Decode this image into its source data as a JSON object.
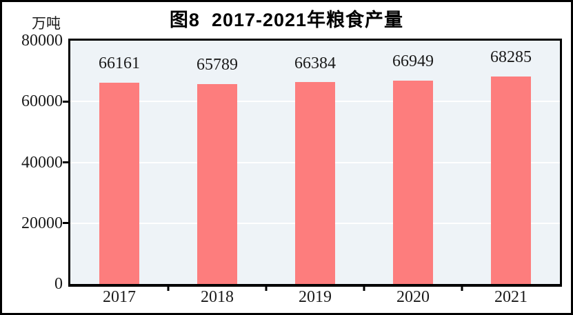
{
  "header": {
    "title": "图8  2017-2021年粮食产量",
    "unit_label": "万吨"
  },
  "chart_data": {
    "type": "bar",
    "title": "图8  2017-2021年粮食产量",
    "categories": [
      "2017",
      "2018",
      "2019",
      "2020",
      "2021"
    ],
    "values": [
      66161,
      65789,
      66384,
      66949,
      68285
    ],
    "data_labels": [
      "66161",
      "65789",
      "66384",
      "66949",
      "68285"
    ],
    "xlabel": "",
    "ylabel": "万吨",
    "ylim": [
      0,
      80000
    ],
    "yticks": [
      0,
      20000,
      40000,
      60000,
      80000
    ],
    "gridline_values": [
      20000,
      40000,
      60000
    ],
    "grid": true,
    "legend": false,
    "colors": {
      "bar": "#FD7D7D",
      "plot_background": "#EEF3F7",
      "gridline": "#FFFFFF",
      "axis": "#000000",
      "text": "#1A1A1A",
      "frame": "#000000",
      "page_background": "#FFFFFF"
    }
  }
}
